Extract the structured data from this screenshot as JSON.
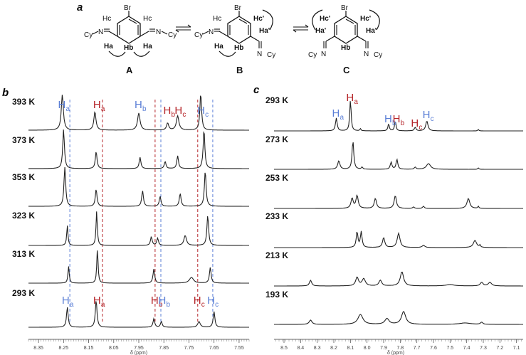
{
  "panel_a": {
    "label": "a",
    "structures": [
      {
        "name": "A",
        "sub_tl": "Hc",
        "sub_tr": "Hc",
        "br": "Br",
        "imine_l": "Cy",
        "imine_r": "Cy",
        "h_left": "Ha",
        "h_mid": "Hb",
        "h_right": "Ha"
      },
      {
        "name": "B",
        "sub_tl": "Hc",
        "sub_tr": "Hc'",
        "br": "Br",
        "imine_l": "Cy",
        "imine_r": "Cy",
        "h_left": "Ha",
        "h_mid": "Hb",
        "h_right": "Ha'"
      },
      {
        "name": "C",
        "sub_tl": "Hc'",
        "sub_tr": "Hc'",
        "br": "Br",
        "imine_l": "Cy",
        "imine_r": "Cy",
        "h_left": "Ha'",
        "h_mid": "Hb",
        "h_right": "Ha'"
      }
    ],
    "N": "N"
  },
  "panel_b": {
    "label": "b",
    "temps": [
      "393 K",
      "373 K",
      "353 K",
      "323 K",
      "313 K",
      "293 K"
    ],
    "xaxis": {
      "ticks": [
        "8.35",
        "8.25",
        "8.15",
        "8.05",
        "7.95",
        "7.85",
        "7.75",
        "7.65",
        "7.55"
      ],
      "label": "δ (ppm)",
      "min": 7.51,
      "max": 8.39
    },
    "top_labels": [
      {
        "H": "H",
        "sub": "a",
        "ppm": 8.255,
        "color": "#5b7fd6"
      },
      {
        "H": "H",
        "sub": "a",
        "ppm": 8.115,
        "color": "#b5252a"
      },
      {
        "H": "H",
        "sub": "b",
        "ppm": 7.95,
        "color": "#5b7fd6"
      },
      {
        "H": "H",
        "sub": "b",
        "ppm": 7.835,
        "color": "#b5252a"
      },
      {
        "H": "H",
        "sub": "c",
        "ppm": 7.79,
        "color": "#b5252a"
      },
      {
        "H": "H",
        "sub": "c",
        "ppm": 7.7,
        "color": "#5b7fd6"
      }
    ],
    "bottom_labels": [
      {
        "H": "H",
        "sub": "a",
        "ppm": 8.24,
        "color": "#5b7fd6"
      },
      {
        "H": "H",
        "sub": "a",
        "ppm": 8.115,
        "color": "#b5252a"
      },
      {
        "H": "H",
        "sub": "b",
        "ppm": 7.885,
        "color": "#b5252a"
      },
      {
        "H": "H",
        "sub": "b",
        "ppm": 7.855,
        "color": "#5b7fd6"
      },
      {
        "H": "H",
        "sub": "c",
        "ppm": 7.715,
        "color": "#b5252a"
      },
      {
        "H": "H",
        "sub": "c",
        "ppm": 7.66,
        "color": "#5b7fd6"
      }
    ],
    "dashed": [
      {
        "ppm": 8.225,
        "color": "#5b7fd6"
      },
      {
        "ppm": 8.095,
        "color": "#b5252a"
      },
      {
        "ppm": 7.885,
        "color": "#b5252a"
      },
      {
        "ppm": 7.862,
        "color": "#5b7fd6"
      },
      {
        "ppm": 7.715,
        "color": "#b5252a"
      },
      {
        "ppm": 7.655,
        "color": "#5b7fd6"
      }
    ]
  },
  "panel_c": {
    "label": "c",
    "temps": [
      "293 K",
      "273 K",
      "253 K",
      "233 K",
      "213 K",
      "193 K"
    ],
    "xaxis": {
      "ticks": [
        "8.5",
        "8.4",
        "8.3",
        "8.2",
        "8.1",
        "8.0",
        "7.9",
        "7.8",
        "7.7",
        "7.6",
        "7.5",
        "7.4",
        "7.3",
        "7.2",
        "7.1"
      ],
      "label": "δ (ppm)",
      "min": 7.06,
      "max": 8.56
    },
    "top_labels": [
      {
        "H": "H",
        "sub": "a",
        "ppm": 8.185,
        "color": "#5b7fd6"
      },
      {
        "H": "H",
        "sub": "a",
        "ppm": 8.1,
        "color": "#b5252a"
      },
      {
        "H": "H",
        "sub": "b",
        "ppm": 7.87,
        "color": "#5b7fd6"
      },
      {
        "H": "H",
        "sub": "b",
        "ppm": 7.82,
        "color": "#b5252a"
      },
      {
        "H": "H",
        "sub": "c",
        "ppm": 7.71,
        "color": "#b5252a"
      },
      {
        "H": "H",
        "sub": "c",
        "ppm": 7.64,
        "color": "#5b7fd6"
      }
    ]
  },
  "colors": {
    "blue": "#5b7fd6",
    "red": "#b5252a",
    "trace": "#222222"
  }
}
